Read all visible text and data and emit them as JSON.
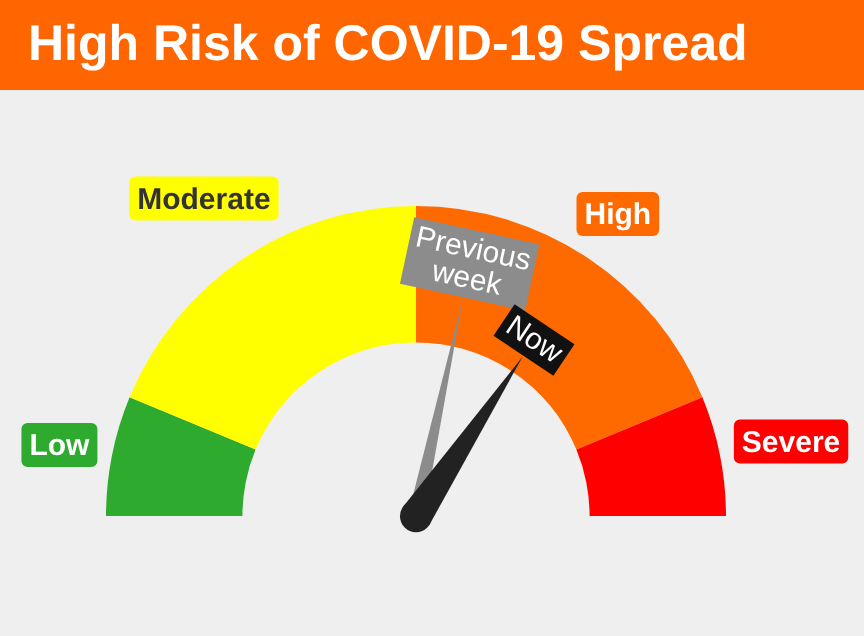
{
  "chart_data": {
    "type": "donut",
    "title": "High Risk of COVID-19 Spread",
    "categories": [
      "Low",
      "Moderate",
      "High",
      "Severe"
    ],
    "values": [
      12.5,
      37.5,
      37.5,
      12.5
    ],
    "colors": [
      "#2eab2e",
      "#ffff00",
      "#ff6a00",
      "#ff0000"
    ],
    "needle": "High",
    "annotations": [
      "Previous week",
      "Now"
    ]
  }
}
